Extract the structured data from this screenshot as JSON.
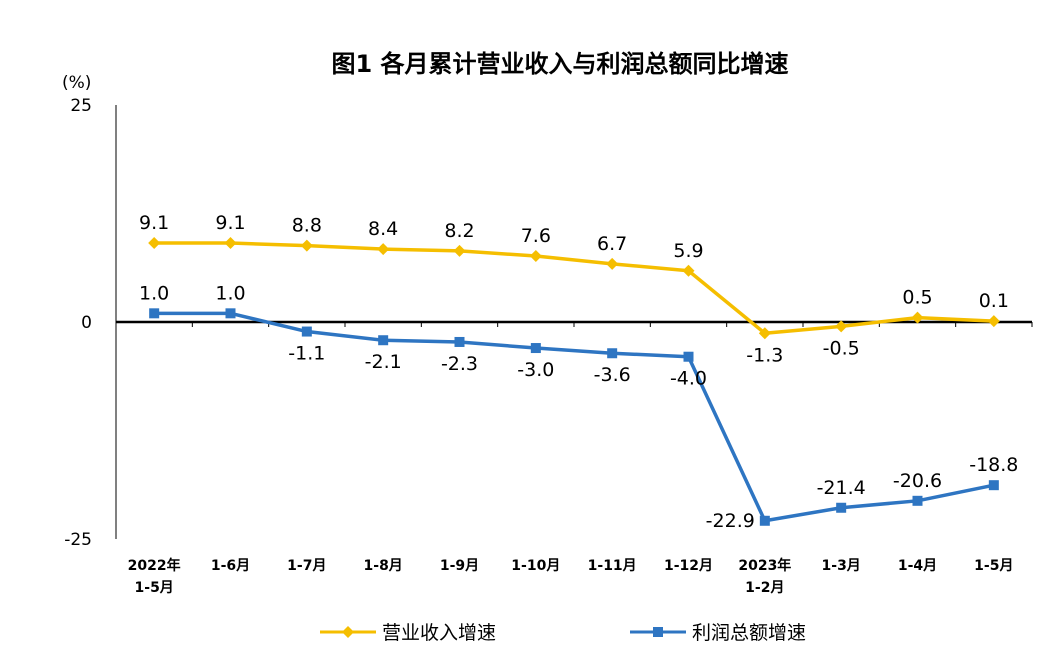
{
  "chart_data": {
    "type": "line",
    "title": "图1  各月累计营业收入与利润总额同比增速",
    "ylabel": "(%)",
    "ylim": [
      -25,
      25
    ],
    "yticks": [
      "25",
      "0",
      "-25"
    ],
    "categories": [
      [
        "2022年",
        "1-5月"
      ],
      [
        "1-6月"
      ],
      [
        "1-7月"
      ],
      [
        "1-8月"
      ],
      [
        "1-9月"
      ],
      [
        "1-10月"
      ],
      [
        "1-11月"
      ],
      [
        "1-12月"
      ],
      [
        "2023年",
        "1-2月"
      ],
      [
        "1-3月"
      ],
      [
        "1-4月"
      ],
      [
        "1-5月"
      ]
    ],
    "series": [
      {
        "name": "营业收入增速",
        "color": "#F5BE00",
        "values": [
          9.1,
          9.1,
          8.8,
          8.4,
          8.2,
          7.6,
          6.7,
          5.9,
          -1.3,
          -0.5,
          0.5,
          0.1
        ],
        "labels": [
          "9.1",
          "9.1",
          "8.8",
          "8.4",
          "8.2",
          "7.6",
          "6.7",
          "5.9",
          "-1.3",
          "-0.5",
          "0.5",
          "0.1"
        ]
      },
      {
        "name": "利润总额增速",
        "color": "#2E75C2",
        "values": [
          1.0,
          1.0,
          -1.1,
          -2.1,
          -2.3,
          -3.0,
          -3.6,
          -4.0,
          -22.9,
          -21.4,
          -20.6,
          -18.8
        ],
        "labels": [
          "1.0",
          "1.0",
          "-1.1",
          "-2.1",
          "-2.3",
          "-3.0",
          "-3.6",
          "-4.0",
          "-22.9",
          "-21.4",
          "-20.6",
          "-18.8"
        ]
      }
    ]
  }
}
